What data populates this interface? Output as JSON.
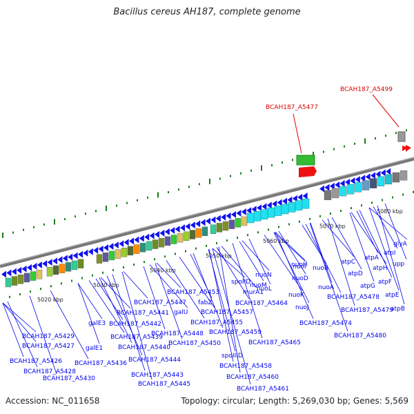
{
  "title": "Bacillus cereus AH187, complete genome",
  "footer": {
    "accession": "Accession: NC_011658",
    "info": "Topology: circular; Length: 5,269,030 bp; Genes: 5,569"
  },
  "kbp_labels": [
    "5020 kbp",
    "5030 kbp",
    "5040 kbp",
    "5050 kbp",
    "5060 kbp",
    "5070 kbp",
    "5080 kbp"
  ],
  "highlighted_genes": [
    "BCAH187_A5477",
    "BCAH187_A5499"
  ],
  "gene_labels": [
    "BCAH187_A5429",
    "BCAH187_A5427",
    "BCAH187_A5426",
    "BCAH187_A5428",
    "BCAH187_A5430",
    "galE3",
    "galE1",
    "BCAH187_A5436",
    "BCAH187_A5439",
    "BCAH187_A5440",
    "BCAH187_A5441",
    "BCAH187_A5442",
    "BCAH187_A5447",
    "BCAH187_A5448",
    "galU",
    "BCAH187_A5444",
    "BCAH187_A5443",
    "BCAH187_A5445",
    "BCAH187_A5450",
    "BCAH187_A5453",
    "fabZ",
    "BCAH187_A5455",
    "BCAH187_A5457",
    "spoIID",
    "BCAH187_A5459",
    "spoIIID",
    "BCAH187_A5458",
    "BCAH187_A5460",
    "BCAH187_A5461",
    "murA1",
    "BCAH187_A5464",
    "BCAH187_A5465",
    "nuoN",
    "nuoM",
    "nuoL",
    "nuoK",
    "nuoJ",
    "nuoI",
    "nuoH",
    "nuoD",
    "nuoB",
    "nuoA",
    "BCAH187_A5474",
    "BCAH187_A5478",
    "atpC",
    "atpD",
    "BCAH187_A5479",
    "atpG",
    "atpA",
    "BCAH187_A5480",
    "atpH",
    "atpF",
    "atpE",
    "atpB",
    "atpI",
    "upp",
    "glyA"
  ],
  "colors": {
    "gene_arrow": "#1111ee",
    "label_blue": "#0000ee",
    "highlight_red": "#dd0000",
    "tick_green": "#1a7a1a",
    "backbone": "#888888"
  }
}
